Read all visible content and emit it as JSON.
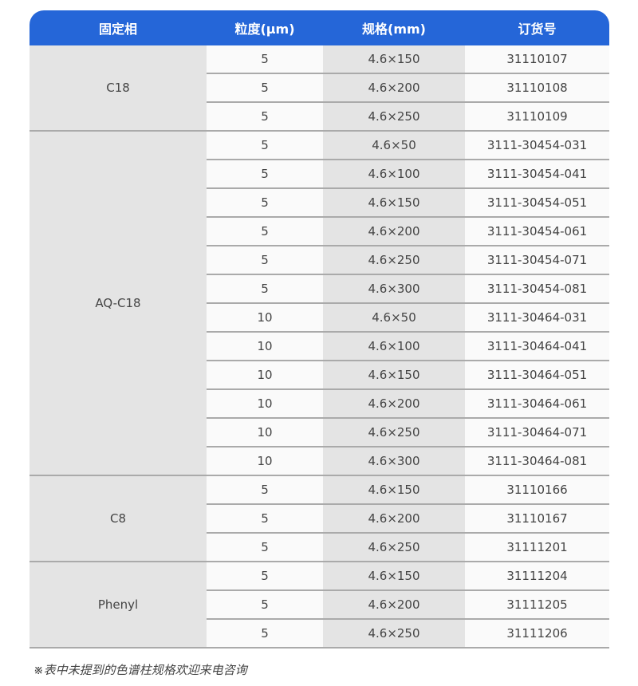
{
  "header": {
    "phase": "固定相",
    "particle": "粒度(μm)",
    "spec": "规格(mm)",
    "order": "订货号"
  },
  "groups": [
    {
      "phase": "C18",
      "rows": [
        [
          "5",
          "4.6×150",
          "31110107"
        ],
        [
          "5",
          "4.6×200",
          "31110108"
        ],
        [
          "5",
          "4.6×250",
          "31110109"
        ]
      ]
    },
    {
      "phase": "AQ-C18",
      "rows": [
        [
          "5",
          "4.6×50",
          "3111-30454-031"
        ],
        [
          "5",
          "4.6×100",
          "3111-30454-041"
        ],
        [
          "5",
          "4.6×150",
          "3111-30454-051"
        ],
        [
          "5",
          "4.6×200",
          "3111-30454-061"
        ],
        [
          "5",
          "4.6×250",
          "3111-30454-071"
        ],
        [
          "5",
          "4.6×300",
          "3111-30454-081"
        ],
        [
          "10",
          "4.6×50",
          "3111-30464-031"
        ],
        [
          "10",
          "4.6×100",
          "3111-30464-041"
        ],
        [
          "10",
          "4.6×150",
          "3111-30464-051"
        ],
        [
          "10",
          "4.6×200",
          "3111-30464-061"
        ],
        [
          "10",
          "4.6×250",
          "3111-30464-071"
        ],
        [
          "10",
          "4.6×300",
          "3111-30464-081"
        ]
      ]
    },
    {
      "phase": "C8",
      "rows": [
        [
          "5",
          "4.6×150",
          "31110166"
        ],
        [
          "5",
          "4.6×200",
          "31110167"
        ],
        [
          "5",
          "4.6×250",
          "31111201"
        ]
      ]
    },
    {
      "phase": "Phenyl",
      "rows": [
        [
          "5",
          "4.6×150",
          "31111204"
        ],
        [
          "5",
          "4.6×200",
          "31111205"
        ],
        [
          "5",
          "4.6×250",
          "31111206"
        ]
      ]
    }
  ],
  "note": "※表中未提到的色谱柱规格欢迎来电咨询",
  "colors": {
    "header": "#2566d8",
    "gray": "#e4e4e4",
    "line": "#aaaaaa"
  }
}
